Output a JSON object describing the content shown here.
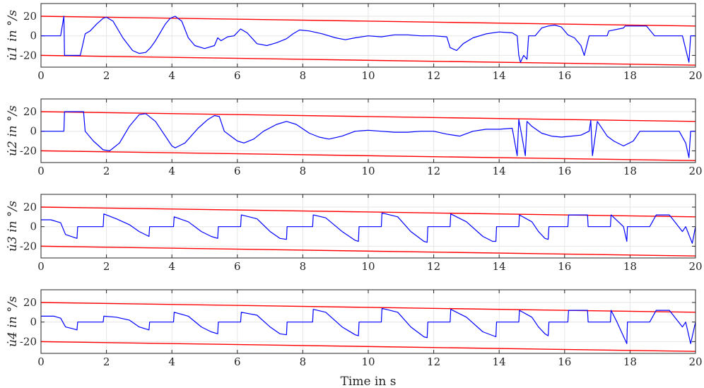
{
  "chart_data": [
    {
      "type": "line",
      "ylabel": "u̇1 in °/s",
      "xlim": [
        0,
        20
      ],
      "ylim": [
        -32,
        33
      ],
      "xticks": [
        "0",
        "2",
        "4",
        "6",
        "8",
        "10",
        "12",
        "14",
        "16",
        "18",
        "20"
      ],
      "yticks": [
        "20",
        "0",
        "-20"
      ],
      "grid": true,
      "colors": {
        "signal": "#0000ff",
        "bounds": "#ff0000"
      },
      "bounds": {
        "upper": {
          "x": [
            0,
            20
          ],
          "y": [
            20,
            10
          ]
        },
        "lower": {
          "x": [
            0,
            20
          ],
          "y": [
            -20,
            -30
          ]
        }
      },
      "series": [
        {
          "x": [
            0,
            0.6,
            0.7,
            0.72,
            0.78,
            0.8,
            1.0,
            1.2,
            1.35,
            1.5,
            1.7,
            1.9,
            2.0,
            2.2,
            2.5,
            2.8,
            3.0,
            3.2,
            3.35,
            3.5,
            3.8,
            3.95,
            4.1,
            4.3,
            4.5,
            4.7,
            5.0,
            5.3,
            5.4,
            5.5,
            5.7,
            5.9,
            6.1,
            6.3,
            6.6,
            6.9,
            7.2,
            7.5,
            7.7,
            7.9,
            8.2,
            8.6,
            9.0,
            9.3,
            9.6,
            10.0,
            10.4,
            10.8,
            11.2,
            11.6,
            12.0,
            12.4,
            12.5,
            12.7,
            12.9,
            13.2,
            13.6,
            14.0,
            14.4,
            14.55,
            14.6,
            14.65,
            14.75,
            14.85,
            14.9,
            15.1,
            15.3,
            15.5,
            15.7,
            15.9,
            16.1,
            16.3,
            16.5,
            16.6,
            16.75,
            16.8,
            16.9,
            17.0,
            17.3,
            17.35,
            17.8,
            17.85,
            18.0,
            18.3,
            18.5,
            18.75,
            18.8,
            18.85,
            19.0,
            19.3,
            19.6,
            19.8,
            19.85,
            20.0
          ],
          "y": [
            0,
            0,
            20,
            -20,
            -20,
            -20,
            -20,
            -20,
            2,
            5,
            12,
            18,
            19,
            15,
            -2,
            -15,
            -18,
            -17,
            -12,
            -5,
            12,
            18,
            20,
            15,
            -2,
            -10,
            -13,
            -10,
            -2,
            -5,
            -1,
            0,
            7,
            3,
            -8,
            -10,
            -7,
            -3,
            2,
            6,
            5,
            2,
            -2,
            -4,
            -2,
            0,
            -1,
            1,
            1,
            0,
            0,
            -1,
            -12,
            -15,
            -8,
            -2,
            2,
            4,
            3,
            0,
            -20,
            -27,
            -20,
            -24,
            0,
            0,
            8,
            10,
            11,
            9,
            1,
            -2,
            -10,
            -20,
            0,
            0,
            0,
            0,
            0,
            5,
            8,
            10,
            10,
            10,
            10,
            0,
            0,
            0,
            0,
            0,
            0,
            -27,
            0,
            0
          ]
        }
      ]
    },
    {
      "type": "line",
      "ylabel": "u̇2 in °/s",
      "xlim": [
        0,
        20
      ],
      "ylim": [
        -32,
        33
      ],
      "xticks": [
        "0",
        "2",
        "4",
        "6",
        "8",
        "10",
        "12",
        "14",
        "16",
        "18",
        "20"
      ],
      "yticks": [
        "20",
        "0",
        "-20"
      ],
      "grid": true,
      "colors": {
        "signal": "#0000ff",
        "bounds": "#ff0000"
      },
      "bounds": {
        "upper": {
          "x": [
            0,
            20
          ],
          "y": [
            20,
            10
          ]
        },
        "lower": {
          "x": [
            0,
            20
          ],
          "y": [
            -20,
            -30
          ]
        }
      },
      "series": [
        {
          "x": [
            0,
            0.7,
            0.72,
            1.0,
            1.3,
            1.35,
            1.6,
            1.9,
            2.1,
            2.4,
            2.7,
            3.0,
            3.2,
            3.5,
            3.8,
            4.0,
            4.1,
            4.4,
            4.8,
            5.1,
            5.3,
            5.45,
            5.6,
            5.8,
            6.0,
            6.2,
            6.5,
            6.8,
            7.2,
            7.5,
            7.8,
            8.2,
            8.5,
            8.8,
            9.2,
            9.6,
            10.0,
            10.4,
            10.8,
            11.2,
            11.6,
            12.0,
            12.4,
            12.8,
            13.2,
            13.6,
            14.0,
            14.4,
            14.55,
            14.6,
            14.7,
            14.8,
            14.85,
            15.0,
            15.3,
            15.6,
            15.9,
            16.2,
            16.5,
            16.75,
            16.8,
            16.85,
            17.0,
            17.3,
            17.5,
            17.8,
            18.1,
            18.3,
            18.6,
            18.9,
            19.2,
            19.5,
            19.7,
            19.8,
            19.85,
            20.0
          ],
          "y": [
            0,
            0,
            20,
            20,
            20,
            0,
            -10,
            -19,
            -20,
            -12,
            5,
            17,
            18,
            10,
            -5,
            -15,
            -17,
            -12,
            3,
            12,
            16,
            15,
            0,
            -5,
            -10,
            -12,
            -8,
            0,
            7,
            10,
            7,
            -2,
            -6,
            -8,
            -5,
            0,
            1,
            0,
            -1,
            -1,
            0,
            0,
            -3,
            -5,
            0,
            2,
            2,
            3,
            -25,
            12,
            -6,
            -25,
            10,
            5,
            -2,
            -5,
            -6,
            -5,
            -4,
            0,
            11,
            -25,
            10,
            -5,
            -10,
            -15,
            -10,
            0,
            0,
            0,
            0,
            0,
            -12,
            -27,
            0,
            0
          ]
        }
      ]
    },
    {
      "type": "line",
      "ylabel": "u̇3 in °/s",
      "xlim": [
        0,
        20
      ],
      "ylim": [
        -32,
        33
      ],
      "xticks": [
        "0",
        "2",
        "4",
        "6",
        "8",
        "10",
        "12",
        "14",
        "16",
        "18",
        "20"
      ],
      "yticks": [
        "20",
        "0",
        "-20"
      ],
      "grid": true,
      "colors": {
        "signal": "#0000ff",
        "bounds": "#ff0000"
      },
      "bounds": {
        "upper": {
          "x": [
            0,
            20
          ],
          "y": [
            20,
            10
          ]
        },
        "lower": {
          "x": [
            0,
            20
          ],
          "y": [
            -20,
            -30
          ]
        }
      },
      "series": [
        {
          "x": [
            0,
            0.3,
            0.6,
            0.75,
            1.1,
            1.12,
            1.9,
            1.92,
            2.3,
            2.7,
            3.0,
            3.3,
            3.32,
            4.05,
            4.07,
            4.5,
            4.9,
            5.2,
            5.4,
            5.42,
            6.1,
            6.12,
            6.6,
            7.0,
            7.3,
            7.5,
            7.52,
            8.3,
            8.32,
            8.7,
            9.2,
            9.6,
            9.7,
            9.72,
            10.4,
            10.42,
            10.9,
            11.3,
            11.7,
            11.8,
            11.82,
            12.5,
            12.52,
            13.0,
            13.5,
            13.8,
            13.9,
            13.92,
            14.6,
            14.62,
            15.0,
            15.2,
            15.4,
            15.5,
            15.52,
            16.1,
            16.12,
            16.7,
            16.72,
            17.4,
            17.42,
            17.8,
            17.9,
            17.92,
            18.6,
            18.8,
            19.2,
            19.6,
            19.7,
            19.9,
            20.0
          ],
          "y": [
            7,
            7,
            4,
            -8,
            -12,
            0,
            0,
            13,
            8,
            2,
            -5,
            -10,
            0,
            0,
            10,
            5,
            -5,
            -10,
            -12,
            0,
            0,
            12,
            8,
            -5,
            -12,
            -13,
            0,
            0,
            12,
            9,
            -5,
            -14,
            -15,
            0,
            0,
            14,
            10,
            -5,
            -15,
            -16,
            0,
            0,
            13,
            5,
            -10,
            -15,
            -15,
            0,
            0,
            12,
            5,
            -5,
            -12,
            -13,
            0,
            0,
            12,
            12,
            0,
            0,
            12,
            0,
            -15,
            0,
            0,
            12,
            12,
            -5,
            0,
            -17,
            0
          ]
        }
      ]
    },
    {
      "type": "line",
      "ylabel": "u̇4 in °/s",
      "xlim": [
        0,
        20
      ],
      "ylim": [
        -32,
        33
      ],
      "xticks": [
        "0",
        "2",
        "4",
        "6",
        "8",
        "10",
        "12",
        "14",
        "16",
        "18",
        "20"
      ],
      "yticks": [
        "20",
        "0",
        "-20"
      ],
      "grid": true,
      "colors": {
        "signal": "#0000ff",
        "bounds": "#ff0000"
      },
      "bounds": {
        "upper": {
          "x": [
            0,
            20
          ],
          "y": [
            20,
            10
          ]
        },
        "lower": {
          "x": [
            0,
            20
          ],
          "y": [
            -20,
            -30
          ]
        }
      },
      "series": [
        {
          "x": [
            0,
            0.4,
            0.6,
            0.75,
            1.0,
            1.1,
            1.12,
            1.4,
            1.9,
            1.92,
            2.3,
            2.7,
            3.0,
            3.3,
            3.32,
            4.05,
            4.07,
            4.5,
            4.9,
            5.2,
            5.4,
            5.42,
            6.1,
            6.12,
            6.6,
            7.0,
            7.3,
            7.5,
            7.52,
            8.3,
            8.32,
            8.7,
            9.2,
            9.6,
            9.7,
            9.72,
            10.4,
            10.42,
            10.9,
            11.3,
            11.7,
            11.8,
            11.82,
            12.5,
            12.52,
            13.0,
            13.5,
            13.9,
            13.92,
            14.6,
            14.62,
            15.0,
            15.2,
            15.4,
            15.5,
            15.52,
            16.1,
            16.12,
            16.7,
            16.72,
            17.4,
            17.42,
            17.6,
            17.9,
            17.92,
            18.6,
            18.8,
            19.2,
            19.6,
            19.7,
            19.85,
            20.0
          ],
          "y": [
            6,
            6,
            4,
            -5,
            -7,
            -8,
            0,
            0,
            0,
            6,
            5,
            2,
            -5,
            -8,
            0,
            0,
            10,
            6,
            -5,
            -10,
            -12,
            0,
            0,
            10,
            7,
            -5,
            -12,
            -13,
            0,
            0,
            13,
            10,
            -5,
            -13,
            -14,
            0,
            0,
            14,
            10,
            -5,
            -15,
            -16,
            0,
            0,
            13,
            5,
            -10,
            -15,
            0,
            0,
            12,
            5,
            -5,
            -12,
            -14,
            0,
            0,
            12,
            12,
            0,
            0,
            12,
            0,
            -22,
            0,
            0,
            12,
            12,
            -5,
            0,
            -22,
            0
          ]
        }
      ]
    }
  ],
  "xlabel": "Time in s"
}
